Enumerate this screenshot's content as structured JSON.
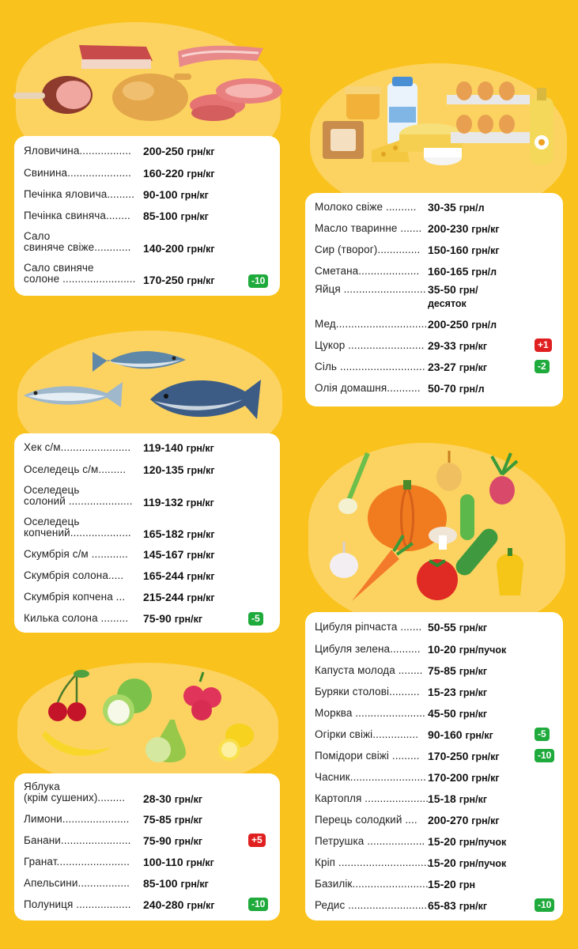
{
  "colors": {
    "background": "#f9c21c",
    "blob": "#fcd361",
    "card": "#ffffff",
    "badge_down": "#1faa3c",
    "badge_up": "#e02020"
  },
  "meat": {
    "illustration_icons": [
      "bacon-icon",
      "ham-icon",
      "chicken-icon",
      "steak-icon"
    ],
    "items": [
      {
        "label": "Яловичина.................",
        "price": "200-250",
        "unit": "грн/кг"
      },
      {
        "label": "Свинина.....................",
        "price": "160-220",
        "unit": "грн/кг"
      },
      {
        "label": "Печінка яловича.........",
        "price": "90-100",
        "unit": "грн/кг"
      },
      {
        "label": "Печінка свиняча........",
        "price": "85-100",
        "unit": "грн/кг"
      },
      {
        "label_line1": "Сало",
        "label_line2": "свиняче свіже............",
        "price": "140-200",
        "unit": "грн/кг"
      },
      {
        "label_line1": "Сало свиняче",
        "label_line2": "солоне ........................",
        "price": "170-250",
        "unit": "грн/кг",
        "badge": "-10"
      }
    ]
  },
  "dairy": {
    "illustration_icons": [
      "milk-icon",
      "cheese-icon",
      "eggs-icon",
      "oil-bottle-icon"
    ],
    "items": [
      {
        "label": "Молоко свіже ..........",
        "price": "30-35",
        "unit": "грн/л"
      },
      {
        "label": "Масло тваринне .......",
        "price": "200-230",
        "unit": "грн/кг"
      },
      {
        "label": "Сир (творог)..............",
        "price": "150-160",
        "unit": "грн/кг"
      },
      {
        "label": "Сметана....................",
        "price": "160-165",
        "unit": "грн/л"
      },
      {
        "label": "Яйця ...........................",
        "price": "35-50",
        "unit": "грн/",
        "unit2": "десяток"
      },
      {
        "label": "Мед..............................",
        "price": "200-250",
        "unit": "грн/л"
      },
      {
        "label": "Цукор .........................",
        "price": "29-33",
        "unit": "грн/кг",
        "badge": "+1"
      },
      {
        "label": "Сіль ............................",
        "price": "23-27",
        "unit": "грн/кг",
        "badge": "-2"
      },
      {
        "label": "Олія домашня...........",
        "price": "50-70",
        "unit": "грн/л"
      }
    ]
  },
  "fish": {
    "illustration_icons": [
      "fish-icon",
      "fish-icon",
      "tuna-icon"
    ],
    "items": [
      {
        "label": "Хек с/м.......................",
        "price": "119-140",
        "unit": "грн/кг"
      },
      {
        "label": "Оселедець с/м.........",
        "price": "120-135",
        "unit": "грн/кг"
      },
      {
        "label_line1": "Оселедець",
        "label_line2": "солоний .....................",
        "price": "119-132",
        "unit": "грн/кг"
      },
      {
        "label_line1": "Оселедець",
        "label_line2": "копчений....................",
        "price": "165-182",
        "unit": "грн/кг"
      },
      {
        "label": "Скумбрія с/м ............",
        "price": "145-167",
        "unit": "грн/кг"
      },
      {
        "label": "Скумбрія солона.....",
        "price": "165-244",
        "unit": "грн/кг"
      },
      {
        "label": "Скумбрія копчена ...",
        "price": "215-244",
        "unit": "грн/кг"
      },
      {
        "label": "Килька солона .........",
        "price": "75-90",
        "unit": "грн/кг",
        "badge": "-5"
      }
    ]
  },
  "vegetables": {
    "illustration_icons": [
      "pumpkin-icon",
      "onion-icon",
      "beet-icon",
      "cucumber-icon",
      "carrot-icon",
      "tomato-icon",
      "pepper-icon",
      "garlic-icon",
      "mushroom-icon"
    ],
    "items": [
      {
        "label": "Цибуля ріпчаста .......",
        "price": "50-55",
        "unit": "грн/кг"
      },
      {
        "label": "Цибуля зелена..........",
        "price": "10-20",
        "unit": "грн/пучок"
      },
      {
        "label": "Капуста молода ........",
        "price": "75-85",
        "unit": "грн/кг"
      },
      {
        "label": "Буряки столові..........",
        "price": "15-23",
        "unit": "грн/кг"
      },
      {
        "label": "Морква .......................",
        "price": "45-50",
        "unit": "грн/кг"
      },
      {
        "label": "Огірки свіжі...............",
        "price": "90-160",
        "unit": "грн/кг",
        "badge": "-5"
      },
      {
        "label": "Помідори свіжі .........",
        "price": "170-250",
        "unit": "грн/кг",
        "badge": "-10"
      },
      {
        "label": "Часник.........................",
        "price": "170-200",
        "unit": "грн/кг"
      },
      {
        "label": "Картопля .....................",
        "price": "15-18",
        "unit": "грн/кг"
      },
      {
        "label": "Перець солодкий ....",
        "price": "200-270",
        "unit": "грн/кг"
      },
      {
        "label": "Петрушка ...................",
        "price": "15-20",
        "unit": "грн/пучок"
      },
      {
        "label": "Кріп ..............................",
        "price": "15-20",
        "unit": "грн/пучок"
      },
      {
        "label": "Базилік.........................",
        "price": "15-20",
        "unit": "грн"
      },
      {
        "label": "Редис ..........................",
        "price": "65-83",
        "unit": "грн/кг",
        "badge": "-10"
      }
    ]
  },
  "fruits": {
    "illustration_icons": [
      "cherry-icon",
      "apple-icon",
      "raspberry-icon",
      "banana-icon",
      "pear-icon",
      "lemon-icon"
    ],
    "items": [
      {
        "label_line1": "Яблука",
        "label_line2": "(крім сушених).........",
        "price": "28-30",
        "unit": "грн/кг"
      },
      {
        "label": "Лимони......................",
        "price": "75-85",
        "unit": "грн/кг"
      },
      {
        "label": "Банани.......................",
        "price": "75-90",
        "unit": "грн/кг",
        "badge": "+5"
      },
      {
        "label": "Гранат........................",
        "price": "100-110",
        "unit": "грн/кг"
      },
      {
        "label": "Апельсини.................",
        "price": "85-100",
        "unit": "грн/кг"
      },
      {
        "label": "Полуниця ..................",
        "price": "240-280",
        "unit": "грн/кг",
        "badge": "-10"
      }
    ]
  }
}
